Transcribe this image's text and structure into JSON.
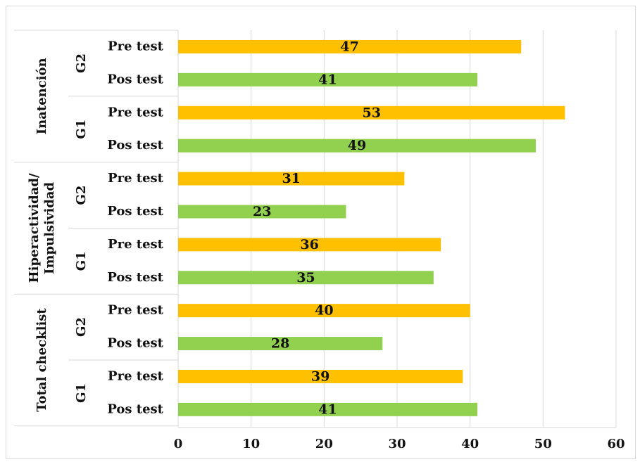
{
  "chart_data": {
    "type": "bar",
    "orientation": "horizontal",
    "xlim": [
      0,
      60
    ],
    "xticks": [
      0,
      10,
      20,
      30,
      40,
      50,
      60
    ],
    "grid": "vertical",
    "legend": "none",
    "colors": {
      "Pre test": "#ffc000",
      "Pos test": "#92d050"
    },
    "groups": [
      {
        "category": "Inatención",
        "subgroups": [
          {
            "name": "G2",
            "bars": [
              {
                "label": "Pre test",
                "value": 47
              },
              {
                "label": "Pos test",
                "value": 41
              }
            ]
          },
          {
            "name": "G1",
            "bars": [
              {
                "label": "Pre test",
                "value": 53
              },
              {
                "label": "Pos test",
                "value": 49
              }
            ]
          }
        ]
      },
      {
        "category": "Hiperactividad/ Impulsividad",
        "category_lines": [
          "Hiperactividad/",
          "Impulsividad"
        ],
        "subgroups": [
          {
            "name": "G2",
            "bars": [
              {
                "label": "Pre test",
                "value": 31
              },
              {
                "label": "Pos test",
                "value": 23
              }
            ]
          },
          {
            "name": "G1",
            "bars": [
              {
                "label": "Pre test",
                "value": 36
              },
              {
                "label": "Pos test",
                "value": 35
              }
            ]
          }
        ]
      },
      {
        "category": "Total checklist",
        "subgroups": [
          {
            "name": "G2",
            "bars": [
              {
                "label": "Pre test",
                "value": 40
              },
              {
                "label": "Pos test",
                "value": 28
              }
            ]
          },
          {
            "name": "G1",
            "bars": [
              {
                "label": "Pre test",
                "value": 39
              },
              {
                "label": "Pos test",
                "value": 41
              }
            ]
          }
        ]
      }
    ]
  }
}
